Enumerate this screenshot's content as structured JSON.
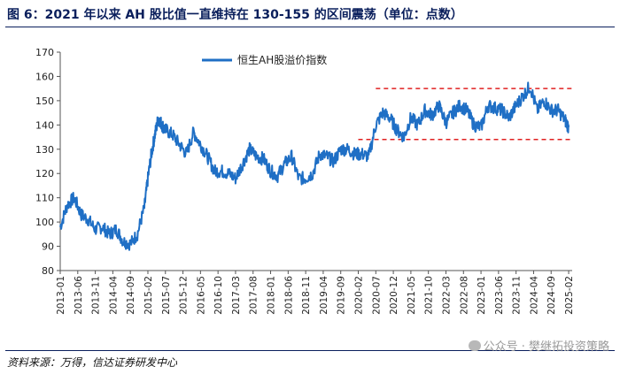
{
  "header": {
    "title": "图 6：2021 年以来 AH 股比值一直维持在 130-155 的区间震荡（单位：点数）"
  },
  "footer": {
    "source": "资料来源：万得，信达证券研发中心",
    "watermark": "公众号 · 樊继拓投资策略"
  },
  "chart_data": {
    "type": "line",
    "title": "",
    "xlabel": "",
    "ylabel": "",
    "ylim": [
      80,
      170
    ],
    "yticks": [
      80,
      90,
      100,
      110,
      120,
      130,
      140,
      150,
      160,
      170
    ],
    "grid": false,
    "legend_position": "top-center",
    "x_tick_labels": [
      "2013-01",
      "2013-06",
      "2013-11",
      "2014-04",
      "2014-09",
      "2015-02",
      "2015-07",
      "2015-12",
      "2016-05",
      "2016-10",
      "2017-03",
      "2017-08",
      "2018-01",
      "2018-06",
      "2018-11",
      "2019-04",
      "2019-09",
      "2020-02",
      "2020-07",
      "2020-12",
      "2021-05",
      "2021-10",
      "2022-03",
      "2022-08",
      "2023-01",
      "2023-06",
      "2023-11",
      "2024-04",
      "2024-09",
      "2025-02"
    ],
    "series": [
      {
        "name": "恒生AH股溢价指数",
        "color": "#1f6fc5",
        "x": [
          "2013-01",
          "2013-03",
          "2013-05",
          "2013-07",
          "2013-09",
          "2013-11",
          "2014-01",
          "2014-03",
          "2014-05",
          "2014-07",
          "2014-09",
          "2014-11",
          "2015-01",
          "2015-02",
          "2015-03",
          "2015-04",
          "2015-05",
          "2015-06",
          "2015-07",
          "2015-09",
          "2015-11",
          "2016-01",
          "2016-03",
          "2016-05",
          "2016-07",
          "2016-09",
          "2016-11",
          "2017-01",
          "2017-03",
          "2017-05",
          "2017-07",
          "2017-09",
          "2017-11",
          "2018-01",
          "2018-03",
          "2018-05",
          "2018-07",
          "2018-09",
          "2018-11",
          "2019-01",
          "2019-03",
          "2019-05",
          "2019-07",
          "2019-09",
          "2019-11",
          "2020-01",
          "2020-03",
          "2020-05",
          "2020-07",
          "2020-09",
          "2020-11",
          "2021-01",
          "2021-03",
          "2021-05",
          "2021-07",
          "2021-09",
          "2021-11",
          "2022-01",
          "2022-03",
          "2022-05",
          "2022-07",
          "2022-09",
          "2022-11",
          "2023-01",
          "2023-03",
          "2023-05",
          "2023-07",
          "2023-09",
          "2023-11",
          "2024-01",
          "2024-03",
          "2024-05",
          "2024-07",
          "2024-09",
          "2024-11",
          "2025-01",
          "2025-02"
        ],
        "values": [
          98,
          107,
          110,
          103,
          101,
          97,
          98,
          95,
          97,
          92,
          91,
          95,
          106,
          118,
          128,
          136,
          143,
          140,
          138,
          136,
          132,
          128,
          137,
          132,
          127,
          121,
          121,
          120,
          118,
          124,
          130,
          127,
          126,
          121,
          119,
          124,
          127,
          118,
          118,
          120,
          128,
          127,
          125,
          130,
          130,
          128,
          128,
          127,
          140,
          145,
          143,
          138,
          135,
          143,
          140,
          146,
          144,
          148,
          141,
          145,
          148,
          146,
          140,
          139,
          148,
          147,
          146,
          143,
          148,
          152,
          156,
          146,
          150,
          146,
          146,
          142,
          139
        ]
      }
    ],
    "annotations": [
      {
        "type": "hline",
        "label": "upper-band",
        "y": 155,
        "x_from": "2020-07",
        "x_to": "2025-03",
        "color": "#e02020"
      },
      {
        "type": "hline",
        "label": "lower-band",
        "y": 134,
        "x_from": "2020-02",
        "x_to": "2025-03",
        "color": "#e02020"
      }
    ]
  }
}
